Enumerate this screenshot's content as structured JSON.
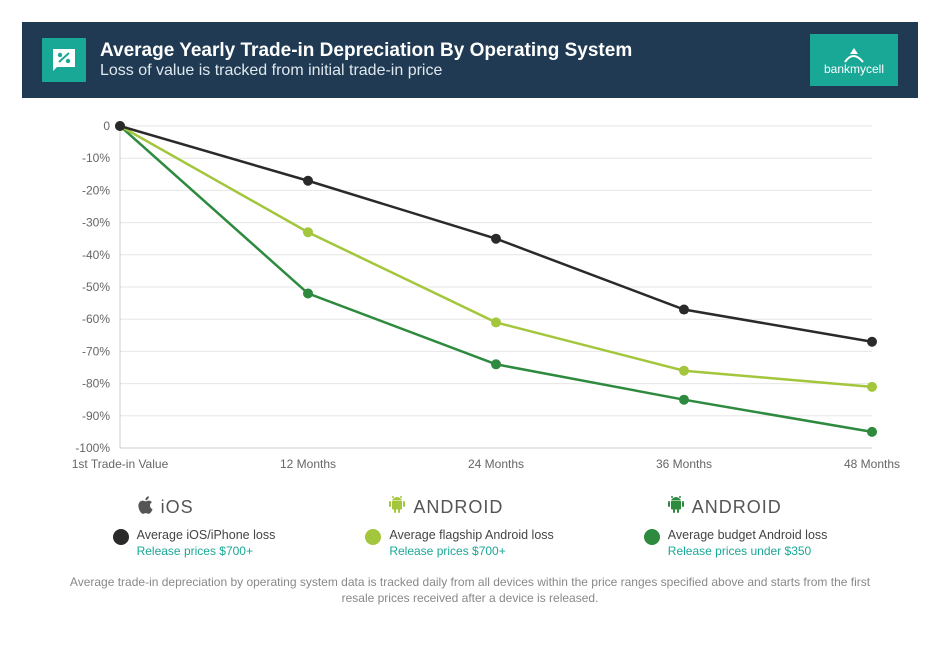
{
  "header": {
    "title": "Average Yearly Trade-in Depreciation By Operating System",
    "subtitle": "Loss of value is tracked from initial trade-in price",
    "brand": "bankmycell",
    "icon_color": "#1aa896",
    "header_bg": "#1f3a52"
  },
  "chart": {
    "type": "line",
    "background_color": "#ffffff",
    "grid_color": "#e6e6e6",
    "axis_color": "#cccccc",
    "label_fontsize": 12,
    "label_color": "#666666",
    "line_width": 2.5,
    "marker_radius": 5,
    "ylim": [
      -100,
      0
    ],
    "ytick_step": 10,
    "y_labels": [
      "0",
      "-10%",
      "-20%",
      "-30%",
      "-40%",
      "-50%",
      "-60%",
      "-70%",
      "-80%",
      "-90%",
      "-100%"
    ],
    "x_labels": [
      "1st Trade-in Value",
      "12 Months",
      "24 Months",
      "36 Months",
      "48 Months"
    ],
    "series": [
      {
        "name": "ios",
        "color": "#2a2a2a",
        "values": [
          0,
          -17,
          -35,
          -57,
          -67
        ]
      },
      {
        "name": "android_flag",
        "color": "#a3c63c",
        "values": [
          0,
          -33,
          -61,
          -76,
          -81
        ]
      },
      {
        "name": "android_budget",
        "color": "#2d8a3e",
        "values": [
          0,
          -52,
          -74,
          -85,
          -95
        ]
      }
    ]
  },
  "legend": {
    "items": [
      {
        "os_label": "iOS",
        "dot_color": "#2a2a2a",
        "caption": "Average iOS/iPhone loss",
        "subcaption": "Release prices $700+",
        "icon": "apple"
      },
      {
        "os_label": "ANDROID",
        "dot_color": "#a3c63c",
        "caption": "Average flagship Android loss",
        "subcaption": "Release prices $700+",
        "icon": "android_light"
      },
      {
        "os_label": "ANDROID",
        "dot_color": "#2d8a3e",
        "caption": "Average budget Android loss",
        "subcaption": "Release prices under $350",
        "icon": "android_dark"
      }
    ]
  },
  "footnote": "Average trade-in depreciation by operating system data is tracked daily from all devices within the price ranges specified above and starts from the first resale prices received after a device is released."
}
